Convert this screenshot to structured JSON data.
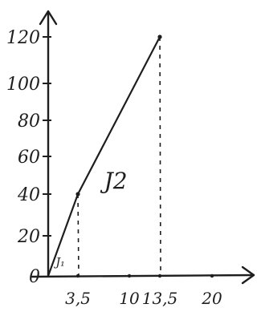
{
  "chart_data": {
    "type": "line",
    "title": "",
    "xlabel": "",
    "ylabel": "",
    "xlim": [
      0,
      25
    ],
    "ylim": [
      0,
      130
    ],
    "grid": false,
    "x_ticks": [
      {
        "value": 3.5,
        "label": "3,5"
      },
      {
        "value": 10,
        "label": "10"
      },
      {
        "value": 13.5,
        "label": "13,5"
      },
      {
        "value": 20,
        "label": "20"
      }
    ],
    "y_ticks": [
      {
        "value": 0,
        "label": "0"
      },
      {
        "value": 20,
        "label": "20"
      },
      {
        "value": 40,
        "label": "40"
      },
      {
        "value": 60,
        "label": "60"
      },
      {
        "value": 80,
        "label": "80"
      },
      {
        "value": 100,
        "label": "100"
      },
      {
        "value": 120,
        "label": "120"
      }
    ],
    "series": [
      {
        "points": [
          {
            "x": 0,
            "y": 0
          },
          {
            "x": 3.5,
            "y": 40
          },
          {
            "x": 13.5,
            "y": 120
          }
        ]
      }
    ],
    "dashed_drops": [
      3.5,
      13.5
    ],
    "regions": [
      {
        "label": "J₁",
        "x": 0.9,
        "y": 5
      },
      {
        "label": "J2",
        "x": 6.8,
        "y": 43
      }
    ],
    "colors": {
      "ink": "#1e1e1e",
      "background": "#ffffff"
    }
  }
}
